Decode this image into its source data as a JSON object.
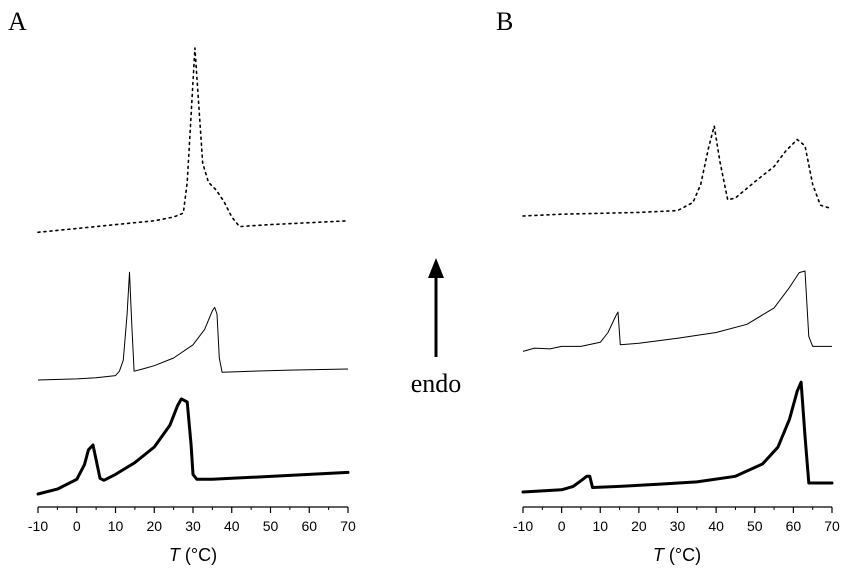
{
  "chart_data": [
    {
      "type": "line",
      "panel_label": "A",
      "xlabel_symbol": "T",
      "xlabel_unit": " (°C)",
      "xlim": [
        -10,
        70
      ],
      "xticks": [
        -10,
        0,
        10,
        20,
        30,
        40,
        50,
        60,
        70
      ],
      "ylabel": "",
      "y_ticks_shown": false,
      "series": [
        {
          "style": "dotted",
          "points": [
            [
              -10,
              0.04
            ],
            [
              0,
              0.06
            ],
            [
              10,
              0.08
            ],
            [
              20,
              0.1
            ],
            [
              25,
              0.12
            ],
            [
              27.5,
              0.14
            ],
            [
              28.5,
              0.3
            ],
            [
              29.5,
              0.65
            ],
            [
              30.5,
              1.0
            ],
            [
              31.5,
              0.7
            ],
            [
              32.5,
              0.4
            ],
            [
              34,
              0.3
            ],
            [
              36,
              0.26
            ],
            [
              38,
              0.2
            ],
            [
              40,
              0.12
            ],
            [
              42,
              0.07
            ],
            [
              50,
              0.08
            ],
            [
              60,
              0.09
            ],
            [
              70,
              0.1
            ]
          ]
        },
        {
          "style": "thin",
          "points": [
            [
              -10,
              0.0
            ],
            [
              0,
              0.01
            ],
            [
              5,
              0.02
            ],
            [
              10,
              0.04
            ],
            [
              11,
              0.08
            ],
            [
              12,
              0.18
            ],
            [
              13,
              0.6
            ],
            [
              13.6,
              0.98
            ],
            [
              14.2,
              0.5
            ],
            [
              14.8,
              0.08
            ],
            [
              17,
              0.1
            ],
            [
              20,
              0.13
            ],
            [
              25,
              0.2
            ],
            [
              30,
              0.32
            ],
            [
              33,
              0.46
            ],
            [
              35,
              0.63
            ],
            [
              35.6,
              0.66
            ],
            [
              36.2,
              0.6
            ],
            [
              36.8,
              0.2
            ],
            [
              37.5,
              0.07
            ],
            [
              45,
              0.08
            ],
            [
              55,
              0.09
            ],
            [
              70,
              0.1
            ]
          ]
        },
        {
          "style": "thick",
          "points": [
            [
              -10,
              0.0
            ],
            [
              -5,
              0.05
            ],
            [
              0,
              0.15
            ],
            [
              2,
              0.3
            ],
            [
              3,
              0.45
            ],
            [
              4.2,
              0.5
            ],
            [
              5,
              0.35
            ],
            [
              6,
              0.16
            ],
            [
              7,
              0.14
            ],
            [
              10,
              0.2
            ],
            [
              15,
              0.32
            ],
            [
              20,
              0.48
            ],
            [
              24,
              0.7
            ],
            [
              26,
              0.9
            ],
            [
              27,
              0.97
            ],
            [
              28.5,
              0.94
            ],
            [
              29.5,
              0.5
            ],
            [
              30,
              0.2
            ],
            [
              31,
              0.15
            ],
            [
              35,
              0.15
            ],
            [
              40,
              0.16
            ],
            [
              50,
              0.18
            ],
            [
              60,
              0.2
            ],
            [
              70,
              0.22
            ]
          ]
        }
      ]
    },
    {
      "type": "line",
      "panel_label": "B",
      "xlabel_symbol": "T",
      "xlabel_unit": " (°C)",
      "xlim": [
        -10,
        70
      ],
      "xticks": [
        -10,
        0,
        10,
        20,
        30,
        40,
        50,
        60,
        70
      ],
      "ylabel": "",
      "y_ticks_shown": false,
      "series": [
        {
          "style": "dotted",
          "points": [
            [
              -10,
              0.0
            ],
            [
              0,
              0.02
            ],
            [
              10,
              0.03
            ],
            [
              20,
              0.04
            ],
            [
              30,
              0.06
            ],
            [
              34,
              0.15
            ],
            [
              36,
              0.35
            ],
            [
              38,
              0.75
            ],
            [
              39.5,
              1.0
            ],
            [
              41,
              0.6
            ],
            [
              43,
              0.18
            ],
            [
              45,
              0.2
            ],
            [
              50,
              0.38
            ],
            [
              55,
              0.55
            ],
            [
              58,
              0.72
            ],
            [
              61,
              0.85
            ],
            [
              63,
              0.78
            ],
            [
              65,
              0.35
            ],
            [
              67,
              0.12
            ],
            [
              70,
              0.08
            ]
          ]
        },
        {
          "style": "thin",
          "points": [
            [
              -10,
              0.02
            ],
            [
              -7,
              0.06
            ],
            [
              -3,
              0.05
            ],
            [
              0,
              0.08
            ],
            [
              5,
              0.08
            ],
            [
              10,
              0.13
            ],
            [
              12,
              0.25
            ],
            [
              14,
              0.45
            ],
            [
              14.6,
              0.5
            ],
            [
              15.2,
              0.1
            ],
            [
              20,
              0.12
            ],
            [
              30,
              0.18
            ],
            [
              40,
              0.25
            ],
            [
              48,
              0.35
            ],
            [
              55,
              0.55
            ],
            [
              59,
              0.8
            ],
            [
              61.5,
              0.98
            ],
            [
              63,
              1.0
            ],
            [
              64,
              0.2
            ],
            [
              65,
              0.08
            ],
            [
              70,
              0.08
            ]
          ]
        },
        {
          "style": "thick",
          "points": [
            [
              -10,
              0.0
            ],
            [
              0,
              0.02
            ],
            [
              3,
              0.05
            ],
            [
              5,
              0.1
            ],
            [
              6.5,
              0.14
            ],
            [
              7.3,
              0.14
            ],
            [
              8,
              0.04
            ],
            [
              15,
              0.05
            ],
            [
              25,
              0.07
            ],
            [
              35,
              0.09
            ],
            [
              45,
              0.14
            ],
            [
              52,
              0.25
            ],
            [
              56,
              0.4
            ],
            [
              59,
              0.65
            ],
            [
              61,
              0.9
            ],
            [
              62,
              0.98
            ],
            [
              63,
              0.5
            ],
            [
              64,
              0.08
            ],
            [
              70,
              0.08
            ]
          ]
        }
      ]
    }
  ],
  "annotation": {
    "arrow_label": "endo"
  }
}
